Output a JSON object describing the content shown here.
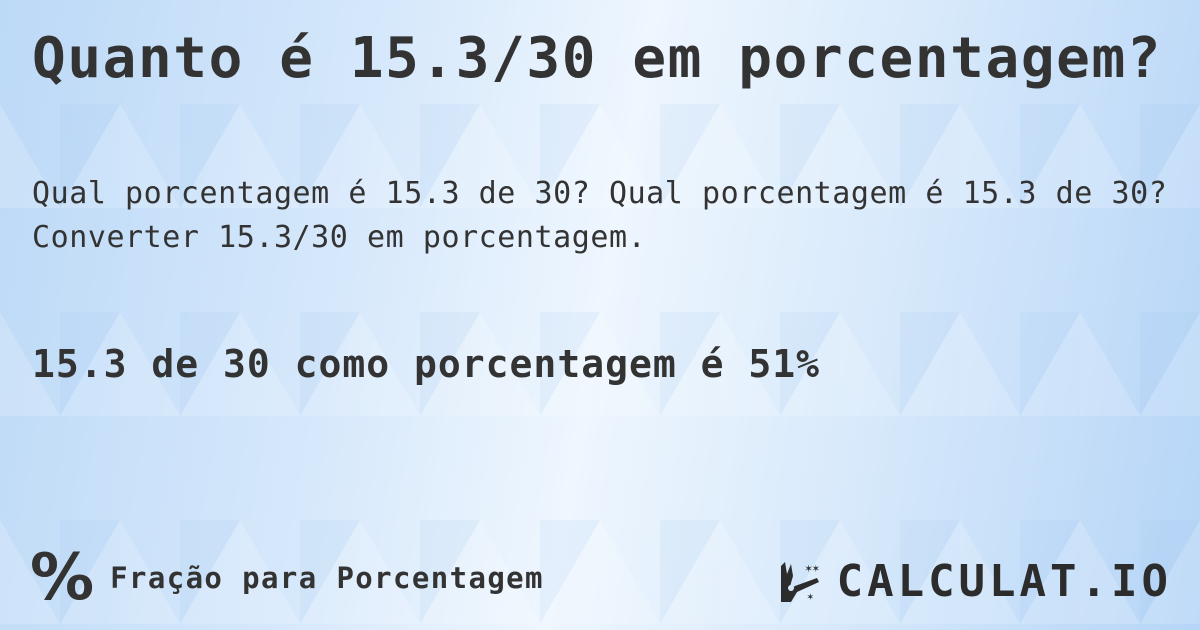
{
  "title": "Quanto é 15.3/30 em porcentagem?",
  "description": "Qual porcentagem é 15.3 de 30? Qual porcentagem é 15.3 de 30? Converter 15.3/30 em porcentagem.",
  "result": "15.3 de 30 como porcentagem é 51%",
  "footer": {
    "icon": "percent-icon",
    "symbol": "%",
    "label": "Fração para Porcentagem"
  },
  "logo": {
    "text": "CALCULAT.IO",
    "icon": "magic-hand-icon"
  },
  "colors": {
    "background": "#d6e8fb",
    "text": "#333333"
  }
}
